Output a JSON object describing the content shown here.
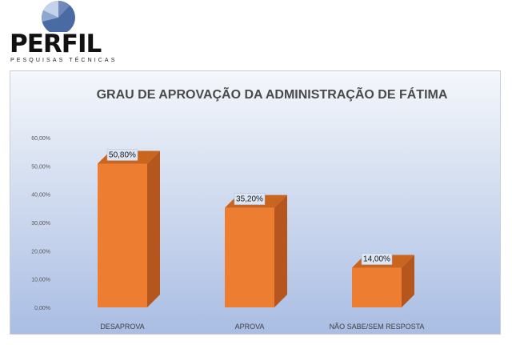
{
  "logo": {
    "name": "PERFIL",
    "tagline": "PESQUISAS TÉCNICAS"
  },
  "chart_data": {
    "type": "bar",
    "title": "GRAU DE APROVAÇÃO DA ADMINISTRAÇÃO DE FÁTIMA",
    "categories": [
      "DESAPROVA",
      "APROVA",
      "NÃO SABE/SEM RESPOSTA"
    ],
    "values": [
      50.8,
      35.2,
      14.0
    ],
    "data_labels": [
      "50,80%",
      "35,20%",
      "14,00%"
    ],
    "ylim": [
      0,
      60
    ],
    "yticks": [
      0,
      10,
      20,
      30,
      40,
      50,
      60
    ],
    "ytick_labels": [
      "0,00%",
      "10,00%",
      "20,00%",
      "30,00%",
      "40,00%",
      "50,00%",
      "60,00%"
    ],
    "xlabel": "",
    "ylabel": "",
    "grid": false,
    "legend": "none",
    "colors": {
      "bar_front": "#ed7d31",
      "bar_side": "#b4561d",
      "bar_top": "#c9651f",
      "background_top": "#f4f7fb",
      "background_bottom": "#a9bde3",
      "label_box": "#dce6f4"
    }
  }
}
